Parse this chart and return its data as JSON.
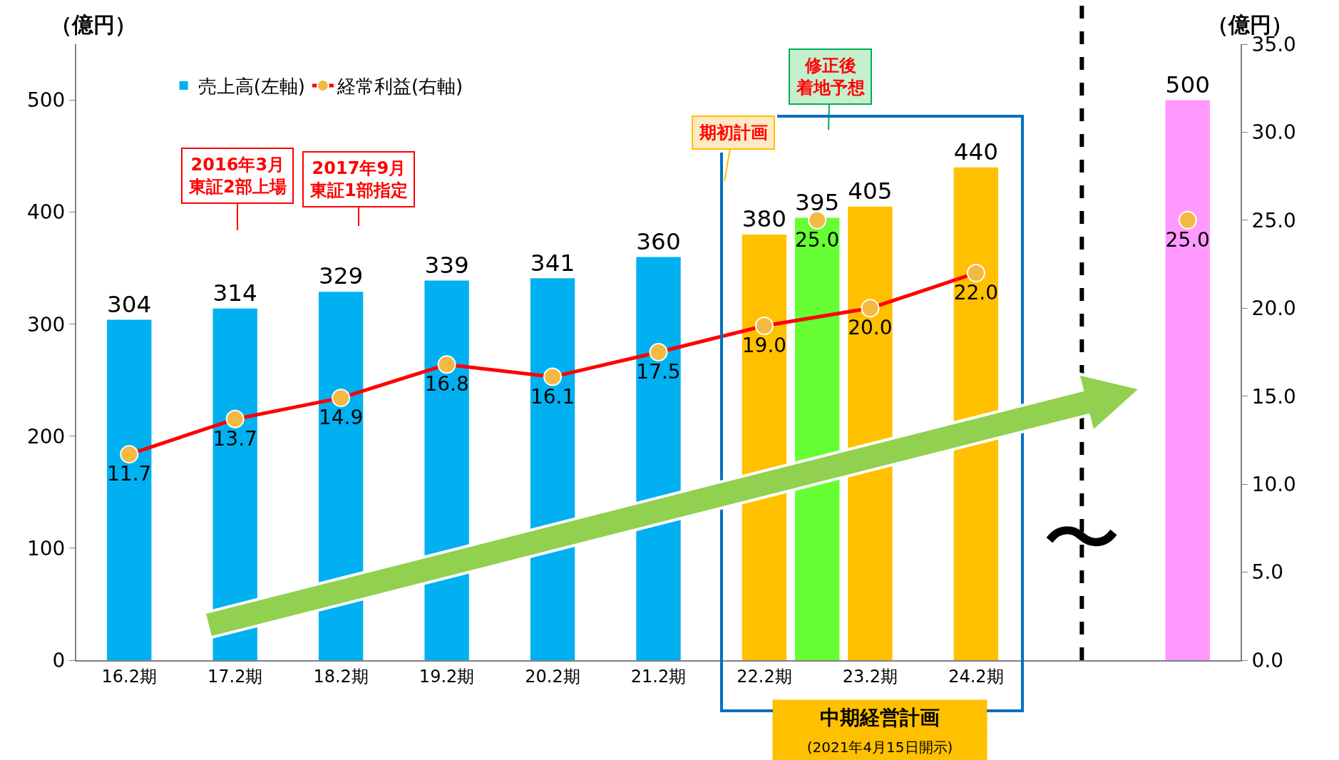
{
  "chart_data": {
    "type": "bar",
    "ylabel": "（億円）",
    "y2label": "（億円）",
    "categories": [
      "16.2期",
      null,
      "17.2期",
      null,
      "18.2期",
      null,
      "19.2期",
      null,
      "20.2期",
      null,
      "21.2期",
      null,
      "22.2期",
      null,
      "23.2期",
      null,
      "24.2期",
      null,
      null,
      null,
      null
    ],
    "series": [
      {
        "name": "売上高(左軸)",
        "color": "#00b0f0",
        "colors": [
          "#00b0f0",
          null,
          "#00b0f0",
          null,
          "#00b0f0",
          null,
          "#00b0f0",
          null,
          "#00b0f0",
          null,
          "#00b0f0",
          null,
          "#ffc000",
          "#66ff33",
          "#ffc000",
          null,
          "#ffc000",
          null,
          null,
          null,
          "#ff99ff"
        ],
        "values": [
          304,
          null,
          314,
          null,
          329,
          null,
          339,
          null,
          341,
          null,
          360,
          null,
          380,
          395,
          405,
          null,
          440,
          null,
          null,
          null,
          500
        ],
        "value_labels": [
          "304",
          null,
          "314",
          null,
          "329",
          null,
          "339",
          null,
          "341",
          null,
          "360",
          null,
          "380",
          "395",
          "405",
          null,
          "440",
          null,
          null,
          null,
          "500"
        ]
      },
      {
        "type": "line",
        "axis": "y2",
        "name": "経常利益(右軸)",
        "color": "#ff0000",
        "colors": [
          "#f4b942",
          null,
          "#f4b942",
          null,
          "#f4b942",
          null,
          "#f4b942",
          null,
          "#f4b942",
          null,
          "#f4b942",
          null,
          "#f4b942",
          null,
          "#f4b942",
          null,
          "#f4b942",
          null,
          null,
          null,
          null
        ],
        "values": [
          11.7,
          null,
          13.7,
          null,
          14.9,
          null,
          16.8,
          null,
          16.1,
          null,
          17.5,
          null,
          19.0,
          null,
          20.0,
          null,
          22.0,
          null,
          null,
          null,
          null
        ],
        "value_labels": [
          "11.7",
          null,
          "13.7",
          null,
          "14.9",
          null,
          "16.8",
          null,
          "16.1",
          null,
          "17.5",
          null,
          "19.0",
          null,
          "20.0",
          null,
          "22.0",
          null,
          null,
          null,
          null
        ]
      },
      {
        "type": "scatter",
        "axis": "y2",
        "color": "#f4b942",
        "values": [
          null,
          null,
          null,
          null,
          null,
          null,
          null,
          null,
          null,
          null,
          null,
          null,
          null,
          25.0,
          null,
          null,
          null,
          null,
          null,
          null,
          25.0
        ],
        "value_labels": [
          null,
          null,
          null,
          null,
          null,
          null,
          null,
          null,
          null,
          null,
          null,
          null,
          null,
          "25.0",
          null,
          null,
          null,
          null,
          null,
          null,
          "25.0"
        ]
      }
    ],
    "ylim": [
      0,
      550
    ],
    "yticks": [
      0,
      100,
      200,
      300,
      400,
      500
    ],
    "y2lim": [
      0,
      35
    ],
    "y2ticks": [
      {
        "value": 0,
        "label": "0.0"
      },
      {
        "value": 5,
        "label": "5.0"
      },
      {
        "value": 10,
        "label": "10.0"
      },
      {
        "value": 15,
        "label": "15.0"
      },
      {
        "value": 20,
        "label": "20.0"
      },
      {
        "value": 25,
        "label": "25.0"
      },
      {
        "value": 30,
        "label": "30.0"
      },
      {
        "value": 35,
        "label": "35.0"
      }
    ],
    "marker": "circle",
    "legend": "top left",
    "ref_lines": [
      {
        "axis": "x",
        "label": "〜",
        "color": "#000000",
        "line_style": "dashed"
      }
    ],
    "annotations": [
      "2016年3月東証2部上場",
      "2017年9月東証1部指定",
      "期初計画",
      "修正後着地予想",
      "中期経営計画",
      "(2021年4月15日開示)"
    ]
  }
}
